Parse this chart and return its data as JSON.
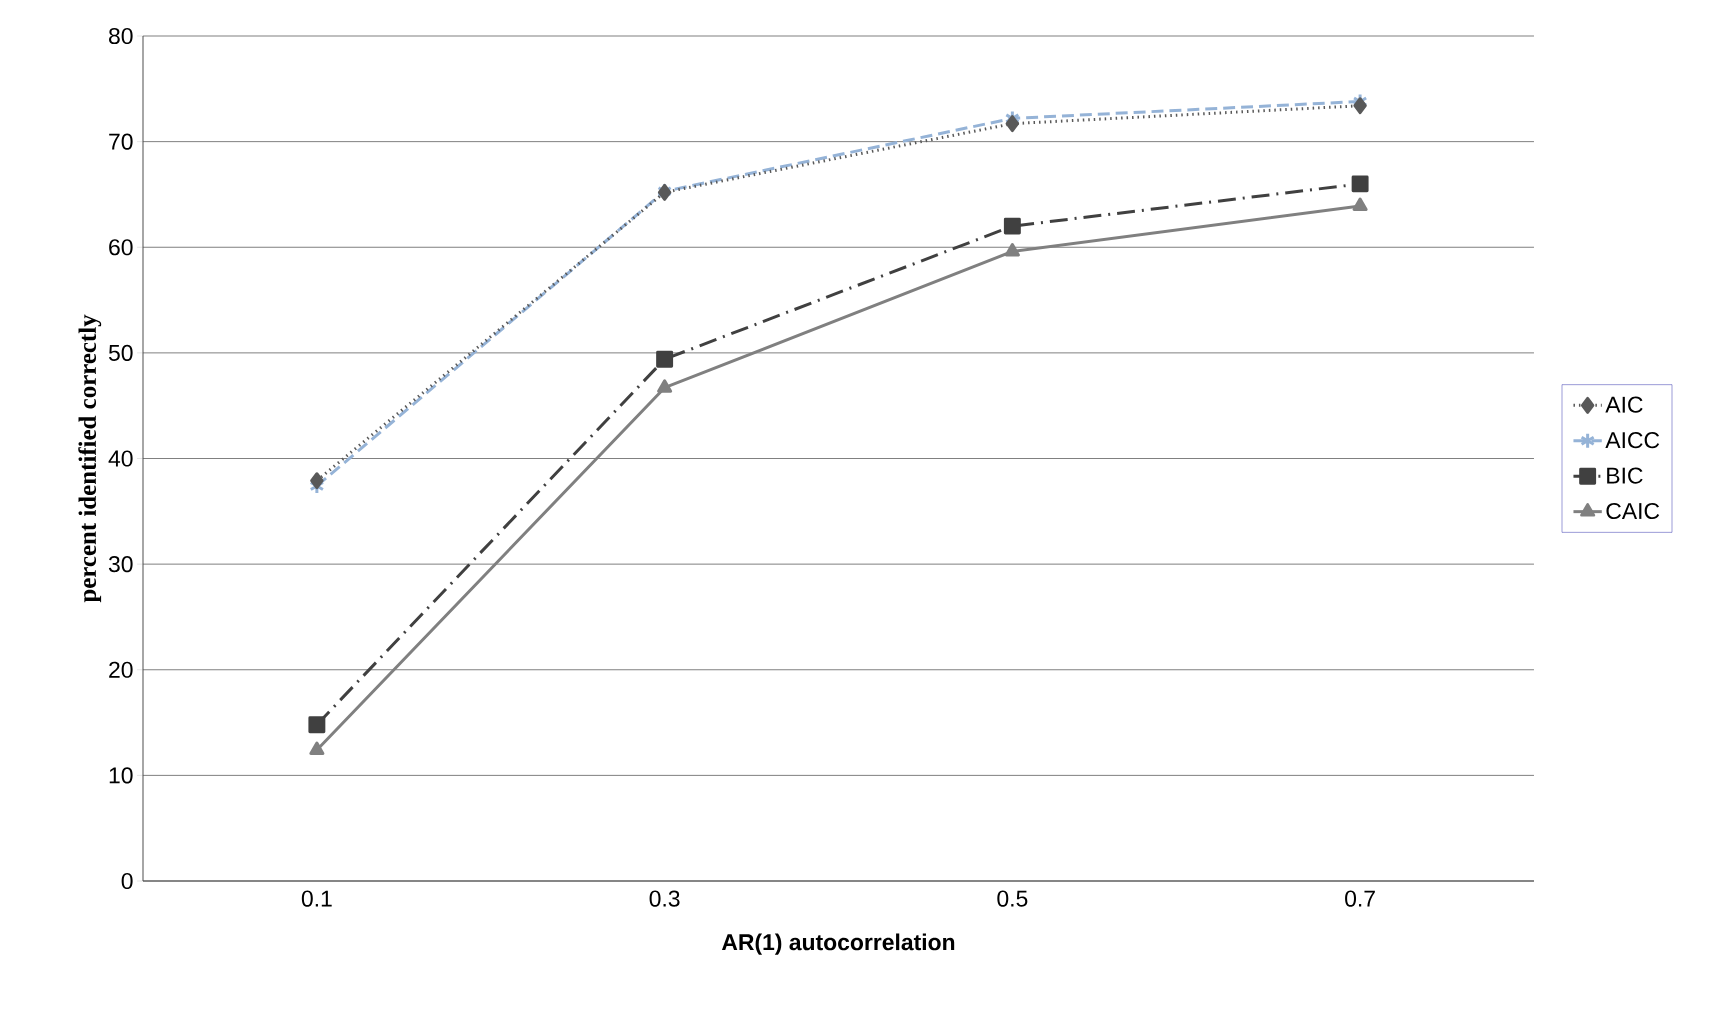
{
  "chart_data": {
    "type": "line",
    "xlabel": "AR(1) autocorrelation",
    "ylabel": "percent identified correctly",
    "categories": [
      "0.1",
      "0.3",
      "0.5",
      "0.7"
    ],
    "series": [
      {
        "name": "AIC",
        "color": "#595959",
        "values": [
          37.9,
          65.2,
          71.7,
          73.4
        ],
        "marker": "diamond",
        "line_style": "dotted"
      },
      {
        "name": "AICC",
        "color": "#95b3d7",
        "values": [
          37.4,
          65.3,
          72.2,
          73.8
        ],
        "marker": "cross",
        "line_style": "dashed"
      },
      {
        "name": "BIC",
        "color": "#404040",
        "values": [
          14.8,
          49.4,
          62.0,
          66.0
        ],
        "marker": "square",
        "line_style": "dashdot"
      },
      {
        "name": "CAIC",
        "color": "#808080",
        "values": [
          12.4,
          46.7,
          59.6,
          63.9
        ],
        "marker": "triangle",
        "line_style": "solid"
      }
    ],
    "ylim": [
      0,
      80
    ],
    "yticks": [
      0,
      10,
      20,
      30,
      40,
      50,
      60,
      70,
      80
    ],
    "grid": "y",
    "legend": "right"
  }
}
